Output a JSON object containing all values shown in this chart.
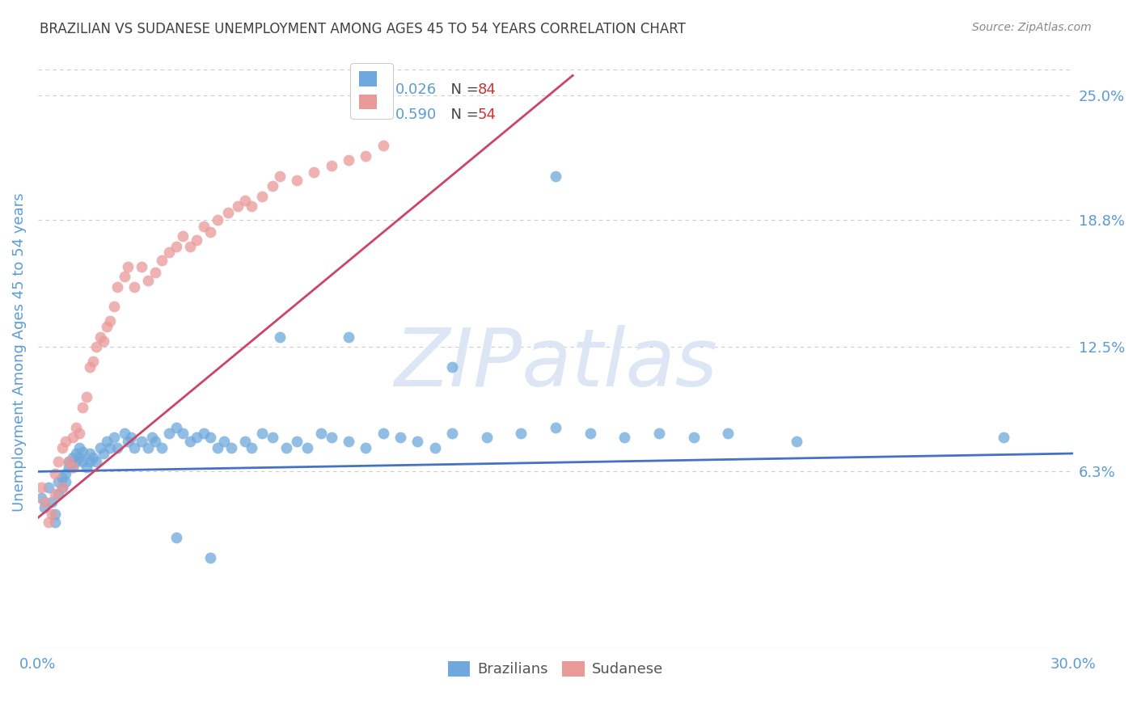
{
  "title": "BRAZILIAN VS SUDANESE UNEMPLOYMENT AMONG AGES 45 TO 54 YEARS CORRELATION CHART",
  "source": "Source: ZipAtlas.com",
  "ylabel": "Unemployment Among Ages 45 to 54 years",
  "watermark": "ZIPatlas",
  "xlim": [
    0.0,
    0.3
  ],
  "ylim": [
    -0.025,
    0.27
  ],
  "ytick_values": [
    0.063,
    0.125,
    0.188,
    0.25
  ],
  "ytick_labels": [
    "6.3%",
    "12.5%",
    "18.8%",
    "25.0%"
  ],
  "top_gridline": 0.263,
  "brazilian_N": 84,
  "sudanese_N": 54,
  "brazilian_color": "#6fa8dc",
  "sudanese_color": "#ea9999",
  "trend_brazilian_color": "#4472c4",
  "trend_sudanese_color": "#cc4466",
  "background_color": "#ffffff",
  "grid_color": "#cccccc",
  "tick_color": "#5b9bd5",
  "title_color": "#404040",
  "watermark_color": "#dce6f4",
  "brazilian_x": [
    0.001,
    0.002,
    0.003,
    0.004,
    0.005,
    0.005,
    0.006,
    0.006,
    0.007,
    0.007,
    0.008,
    0.008,
    0.009,
    0.009,
    0.01,
    0.01,
    0.011,
    0.011,
    0.012,
    0.012,
    0.013,
    0.013,
    0.014,
    0.015,
    0.015,
    0.016,
    0.017,
    0.018,
    0.019,
    0.02,
    0.021,
    0.022,
    0.023,
    0.025,
    0.026,
    0.027,
    0.028,
    0.03,
    0.032,
    0.033,
    0.034,
    0.036,
    0.038,
    0.04,
    0.042,
    0.044,
    0.046,
    0.048,
    0.05,
    0.052,
    0.054,
    0.056,
    0.06,
    0.062,
    0.065,
    0.068,
    0.072,
    0.075,
    0.078,
    0.082,
    0.085,
    0.09,
    0.095,
    0.1,
    0.105,
    0.11,
    0.115,
    0.12,
    0.13,
    0.14,
    0.15,
    0.16,
    0.17,
    0.18,
    0.19,
    0.2,
    0.15,
    0.12,
    0.09,
    0.07,
    0.22,
    0.28,
    0.05,
    0.04
  ],
  "brazilian_y": [
    0.05,
    0.045,
    0.055,
    0.048,
    0.042,
    0.038,
    0.052,
    0.058,
    0.06,
    0.055,
    0.062,
    0.058,
    0.068,
    0.065,
    0.07,
    0.065,
    0.072,
    0.068,
    0.075,
    0.07,
    0.073,
    0.068,
    0.065,
    0.072,
    0.068,
    0.07,
    0.068,
    0.075,
    0.072,
    0.078,
    0.075,
    0.08,
    0.075,
    0.082,
    0.078,
    0.08,
    0.075,
    0.078,
    0.075,
    0.08,
    0.078,
    0.075,
    0.082,
    0.085,
    0.082,
    0.078,
    0.08,
    0.082,
    0.08,
    0.075,
    0.078,
    0.075,
    0.078,
    0.075,
    0.082,
    0.08,
    0.075,
    0.078,
    0.075,
    0.082,
    0.08,
    0.078,
    0.075,
    0.082,
    0.08,
    0.078,
    0.075,
    0.082,
    0.08,
    0.082,
    0.085,
    0.082,
    0.08,
    0.082,
    0.08,
    0.082,
    0.21,
    0.115,
    0.13,
    0.13,
    0.078,
    0.08,
    0.02,
    0.03
  ],
  "sudanese_x": [
    0.001,
    0.002,
    0.003,
    0.004,
    0.005,
    0.005,
    0.006,
    0.007,
    0.007,
    0.008,
    0.009,
    0.01,
    0.01,
    0.011,
    0.012,
    0.013,
    0.014,
    0.015,
    0.016,
    0.017,
    0.018,
    0.019,
    0.02,
    0.021,
    0.022,
    0.023,
    0.025,
    0.026,
    0.028,
    0.03,
    0.032,
    0.034,
    0.036,
    0.038,
    0.04,
    0.042,
    0.044,
    0.046,
    0.048,
    0.05,
    0.052,
    0.055,
    0.058,
    0.06,
    0.062,
    0.065,
    0.068,
    0.07,
    0.075,
    0.08,
    0.085,
    0.09,
    0.095,
    0.1
  ],
  "sudanese_y": [
    0.055,
    0.048,
    0.038,
    0.042,
    0.052,
    0.062,
    0.068,
    0.055,
    0.075,
    0.078,
    0.068,
    0.08,
    0.065,
    0.085,
    0.082,
    0.095,
    0.1,
    0.115,
    0.118,
    0.125,
    0.13,
    0.128,
    0.135,
    0.138,
    0.145,
    0.155,
    0.16,
    0.165,
    0.155,
    0.165,
    0.158,
    0.162,
    0.168,
    0.172,
    0.175,
    0.18,
    0.175,
    0.178,
    0.185,
    0.182,
    0.188,
    0.192,
    0.195,
    0.198,
    0.195,
    0.2,
    0.205,
    0.21,
    0.208,
    0.212,
    0.215,
    0.218,
    0.22,
    0.225
  ],
  "trend_braz_x0": 0.0,
  "trend_braz_x1": 0.3,
  "trend_braz_y0": 0.063,
  "trend_braz_y1": 0.072,
  "trend_sud_x0": 0.0,
  "trend_sud_x1": 0.155,
  "trend_sud_y0": 0.04,
  "trend_sud_y1": 0.26
}
